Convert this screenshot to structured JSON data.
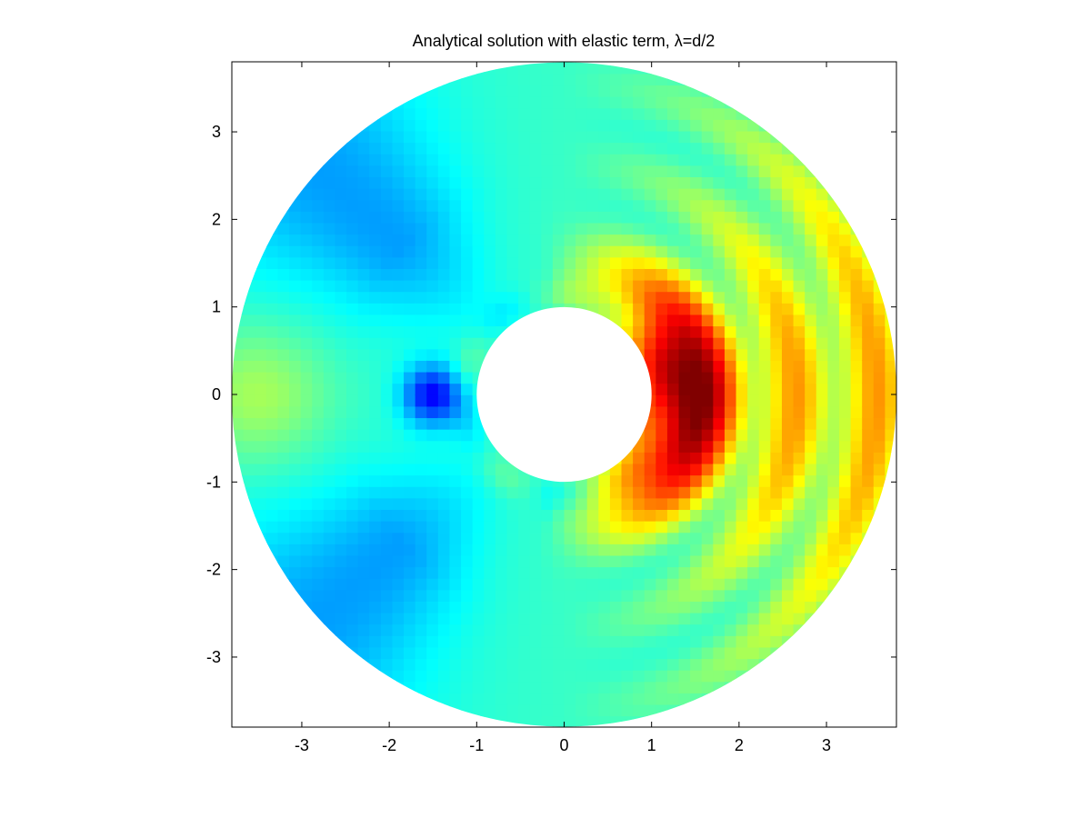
{
  "chart_data": {
    "type": "heatmap",
    "title": "Analytical solution with elastic term, λ=d/2",
    "xlabel": "",
    "ylabel": "",
    "xlim": [
      -3.8,
      3.8
    ],
    "ylim": [
      -3.8,
      3.8
    ],
    "x_ticks": [
      "-3",
      "-2",
      "-1",
      "0",
      "1",
      "2",
      "3"
    ],
    "y_ticks": [
      "3",
      "2",
      "1",
      "0",
      "-1",
      "-2",
      "-3"
    ],
    "x_tick_values": [
      -3,
      -2,
      -1,
      0,
      1,
      2,
      3
    ],
    "y_tick_values": [
      3,
      2,
      1,
      0,
      -1,
      -2,
      -3
    ],
    "domain": {
      "shape": "annulus",
      "inner_radius": 1,
      "outer_radius": 3.8
    },
    "colormap": "jet",
    "value_range": [
      0,
      1
    ],
    "grid": false,
    "legend": "none"
  }
}
